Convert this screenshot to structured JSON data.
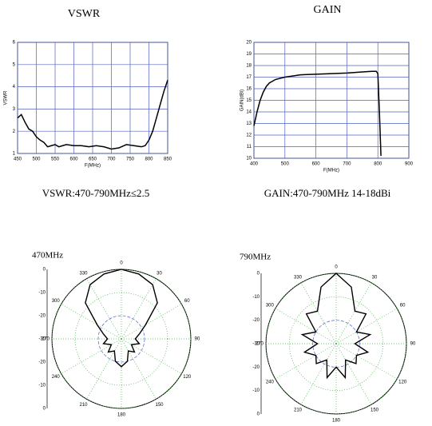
{
  "chart_data": [
    {
      "type": "line",
      "title": "VSWR",
      "caption": "VSWR:470-790MHz≤2.5",
      "xlabel": "F(MHz)",
      "ylabel": "VSWR",
      "x": [
        450,
        460,
        470,
        480,
        490,
        500,
        510,
        520,
        530,
        540,
        550,
        560,
        570,
        580,
        600,
        620,
        640,
        660,
        680,
        700,
        720,
        740,
        760,
        780,
        790,
        800,
        810,
        820,
        830,
        840,
        850
      ],
      "values": [
        2.6,
        2.75,
        2.4,
        2.1,
        2.0,
        1.75,
        1.6,
        1.5,
        1.3,
        1.35,
        1.4,
        1.3,
        1.35,
        1.4,
        1.35,
        1.35,
        1.3,
        1.35,
        1.3,
        1.2,
        1.25,
        1.4,
        1.35,
        1.3,
        1.35,
        1.6,
        2.0,
        2.6,
        3.2,
        3.8,
        4.3
      ],
      "color": "#000000",
      "xlim": [
        450,
        850
      ],
      "ylim": [
        1,
        6
      ],
      "xticks": [
        450,
        500,
        550,
        600,
        650,
        700,
        750,
        800,
        850
      ],
      "yticks": [
        1,
        2,
        3,
        4,
        5,
        6
      ],
      "grid": true
    },
    {
      "type": "line",
      "title": "GAIN",
      "caption": "GAIN:470-790MHz   14-18dBi",
      "xlabel": "F(MHz)",
      "ylabel": "GAIN(dBi)",
      "x": [
        400,
        410,
        420,
        430,
        440,
        450,
        470,
        500,
        550,
        600,
        650,
        700,
        750,
        780,
        795,
        800,
        805,
        810
      ],
      "values": [
        12.8,
        14,
        15,
        15.7,
        16.2,
        16.5,
        16.8,
        17,
        17.2,
        17.25,
        17.3,
        17.35,
        17.45,
        17.5,
        17.5,
        17.3,
        14,
        10.2
      ],
      "color": "#000000",
      "xlim": [
        400,
        900
      ],
      "ylim": [
        10,
        20
      ],
      "xticks": [
        400,
        500,
        600,
        700,
        800,
        900
      ],
      "yticks": [
        10,
        11,
        12,
        13,
        14,
        15,
        16,
        17,
        18,
        19,
        20
      ],
      "grid": true
    },
    {
      "type": "polar",
      "title": "470MHz",
      "theta": [
        0,
        15,
        30,
        45,
        60,
        75,
        90,
        105,
        120,
        135,
        150,
        165,
        180,
        195,
        210,
        225,
        240,
        255,
        270,
        285,
        300,
        315,
        330,
        345
      ],
      "values": [
        0,
        -1,
        -3,
        -8,
        -18,
        -22,
        -24,
        -22,
        -25,
        -22,
        -24,
        -20,
        -18,
        -20,
        -24,
        -22,
        -25,
        -22,
        -24,
        -22,
        -18,
        -8,
        -3,
        -1
      ],
      "color": "#000000",
      "rlim": [
        -30,
        0
      ],
      "rticks": [
        -30,
        -20,
        -10,
        0
      ],
      "thetaticks": [
        0,
        30,
        60,
        90,
        120,
        150,
        180,
        210,
        240,
        270,
        300,
        330
      ]
    },
    {
      "type": "polar",
      "title": "790MHz",
      "theta": [
        0,
        15,
        30,
        45,
        60,
        75,
        90,
        105,
        120,
        135,
        150,
        165,
        180,
        195,
        210,
        225,
        240,
        255,
        270,
        285,
        300,
        315,
        330,
        345
      ],
      "values": [
        0,
        -5,
        -14,
        -12,
        -20,
        -15,
        -22,
        -16,
        -20,
        -18,
        -22,
        -15,
        -20,
        -15,
        -22,
        -18,
        -20,
        -16,
        -22,
        -15,
        -20,
        -12,
        -14,
        -5
      ],
      "color": "#000000",
      "rlim": [
        -30,
        0
      ],
      "rticks": [
        -30,
        -20,
        -10,
        0
      ],
      "thetaticks": [
        0,
        30,
        60,
        90,
        120,
        150,
        180,
        210,
        240,
        270,
        300,
        330
      ]
    }
  ]
}
